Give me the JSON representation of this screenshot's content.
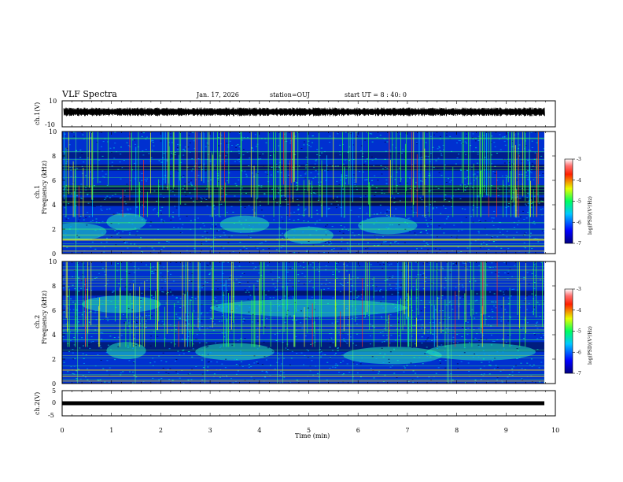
{
  "header": {
    "title": "VLF Spectra",
    "date": "Jan. 17, 2026",
    "station": "station=OUJ",
    "start": "start  UT =   8 : 40: 0"
  },
  "chart_data": [
    {
      "type": "line",
      "panel": "waveform-ch1",
      "ylabel": "ch.1(V)",
      "ylim": [
        -10,
        10
      ],
      "yticks": [
        "10",
        "-10"
      ],
      "xlim": [
        0,
        9.8
      ],
      "description_series": "broadband noise waveform centered near 0 V"
    },
    {
      "type": "heatmap",
      "panel": "spectrogram-ch1",
      "ylabel": "ch.1\nFrequency (kHz)",
      "xlim": [
        0,
        9.8
      ],
      "ylim": [
        0,
        10
      ],
      "yticks": [
        "0",
        "2",
        "4",
        "6",
        "8",
        "10"
      ],
      "colorbar": {
        "label": "log(PSD)(V²/Hz)",
        "range": [
          -7,
          -3
        ],
        "ticks": [
          "-3",
          "-4",
          "-5",
          "-6",
          "-7"
        ]
      }
    },
    {
      "type": "heatmap",
      "panel": "spectrogram-ch2",
      "ylabel": "ch.2\nFrequency (kHz)",
      "xlim": [
        0,
        9.8
      ],
      "ylim": [
        0,
        10
      ],
      "yticks": [
        "0",
        "2",
        "4",
        "6",
        "8",
        "10"
      ],
      "colorbar": {
        "label": "log(PSD)(V²/Hz)",
        "range": [
          -7,
          -3
        ],
        "ticks": [
          "-3",
          "-4",
          "-5",
          "-6",
          "-7"
        ]
      }
    },
    {
      "type": "line",
      "panel": "waveform-ch2",
      "ylabel": "ch.2(V)",
      "ylim": [
        -5,
        5
      ],
      "yticks": [
        "5",
        "0",
        "-5"
      ],
      "xlim": [
        0,
        9.8
      ]
    }
  ],
  "xaxis": {
    "label": "Time (min)",
    "range": [
      0,
      10
    ],
    "ticks": [
      "0",
      "1",
      "2",
      "3",
      "4",
      "5",
      "6",
      "7",
      "8",
      "9",
      "10"
    ]
  }
}
